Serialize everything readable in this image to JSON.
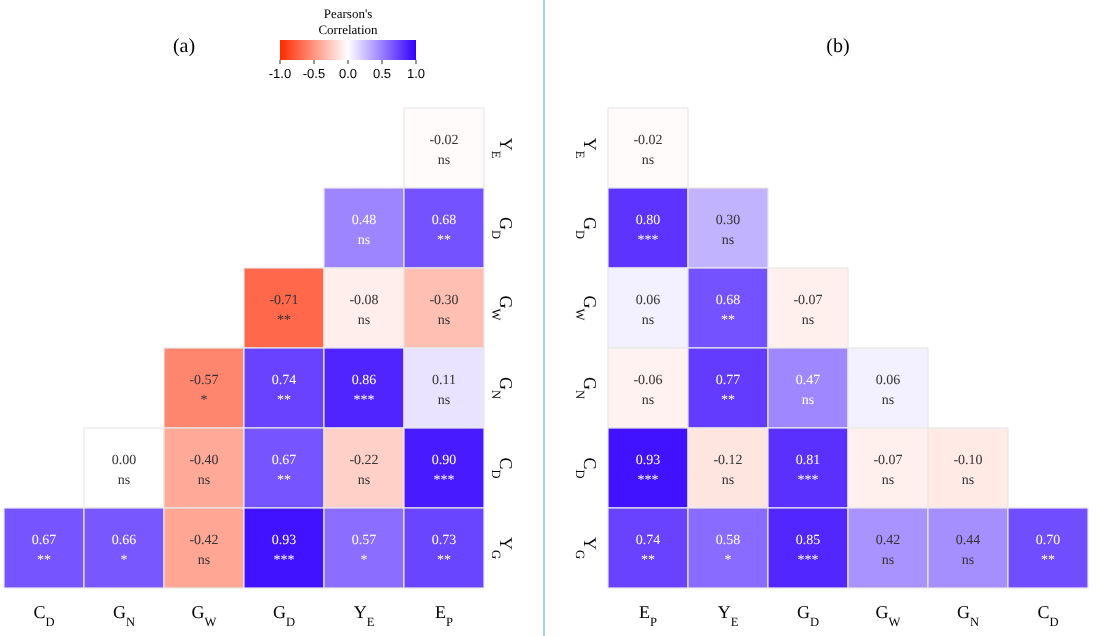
{
  "chart_data": [
    {
      "type": "heatmap",
      "title": "(a)",
      "clabel": "Pearson's Correlation",
      "clim": [
        -1,
        1
      ],
      "cticks": [
        {
          "value": -1,
          "label": "-1.0"
        },
        {
          "value": -0.5,
          "label": "-0.5"
        },
        {
          "value": 0,
          "label": "0.0"
        },
        {
          "value": 0.5,
          "label": "0.5"
        },
        {
          "value": 1,
          "label": "1.0"
        }
      ],
      "categories": [
        "C$_{D}$",
        "G$_{N}$",
        "G$_{W}$",
        "G$_{D}$",
        "Y$_{E}$",
        "E$_{P}$"
      ],
      "y_categories": [
        "Y$_{E}$",
        "G$_{D}$",
        "G$_{W}$",
        "G$_{N}$",
        "C$_{D}$",
        "Y$_{G}$"
      ],
      "cells": [
        [
          null,
          null,
          null,
          null,
          null,
          -0.02
        ],
        [
          null,
          null,
          null,
          null,
          0.48,
          0.68
        ],
        [
          null,
          null,
          null,
          -0.71,
          -0.08,
          -0.3
        ],
        [
          null,
          null,
          -0.57,
          0.74,
          0.86,
          0.11
        ],
        [
          null,
          0.0,
          -0.4,
          0.67,
          -0.22,
          0.9
        ],
        [
          0.67,
          0.66,
          -0.42,
          0.93,
          0.57,
          0.73
        ]
      ],
      "cell_labels": [
        [
          null,
          null,
          null,
          null,
          null,
          "-0.02\nns"
        ],
        [
          null,
          null,
          null,
          null,
          "0.48\nns",
          "0.68\n**"
        ],
        [
          null,
          null,
          null,
          "-0.71\n**",
          "-0.08\nns",
          "-0.30\nns"
        ],
        [
          null,
          null,
          "-0.57\n*",
          "0.74\n**",
          "0.86\n***",
          "0.11\nns"
        ],
        [
          null,
          "0.00\nns",
          "-0.40\nns",
          "0.67\n**",
          "-0.22\nns",
          "0.90\n***"
        ],
        [
          "0.67\n**",
          "0.66\n*",
          "-0.42\nns",
          "0.93\n***",
          "0.57\n*",
          "0.73\n**"
        ]
      ]
    },
    {
      "type": "heatmap",
      "title": "(b)",
      "categories": [
        "E$_{P}$",
        "Y$_{E}$",
        "G$_{D}$",
        "G$_{W}$",
        "G$_{N}$",
        "C$_{D}$"
      ],
      "y_categories": [
        "Y$_{E}$",
        "G$_{D}$",
        "G$_{W}$",
        "G$_{N}$",
        "C$_{D}$",
        "Y$_{G}$"
      ],
      "cells": [
        [
          -0.02,
          null,
          null,
          null,
          null,
          null
        ],
        [
          0.8,
          0.3,
          null,
          null,
          null,
          null
        ],
        [
          0.06,
          0.68,
          -0.07,
          null,
          null,
          null
        ],
        [
          -0.06,
          0.77,
          0.47,
          0.06,
          null,
          null
        ],
        [
          0.93,
          -0.12,
          0.81,
          -0.07,
          -0.1,
          null
        ],
        [
          0.74,
          0.58,
          0.85,
          0.42,
          0.44,
          0.7
        ]
      ],
      "cell_labels": [
        [
          "-0.02\nns",
          null,
          null,
          null,
          null,
          null
        ],
        [
          "0.80\n***",
          "0.30\nns",
          null,
          null,
          null,
          null
        ],
        [
          "0.06\nns",
          "0.68\n**",
          "-0.07\nns",
          null,
          null,
          null
        ],
        [
          "-0.06\nns",
          "0.77\n**",
          "0.47\nns",
          "0.06\nns",
          null,
          null
        ],
        [
          "0.93\n***",
          "-0.12\nns",
          "0.81\n***",
          "-0.07\nns",
          "-0.10\nns",
          null
        ],
        [
          "0.74\n**",
          "0.58\n*",
          "0.85\n***",
          "0.42\nns",
          "0.44\nns",
          "0.70\n**"
        ]
      ]
    }
  ]
}
